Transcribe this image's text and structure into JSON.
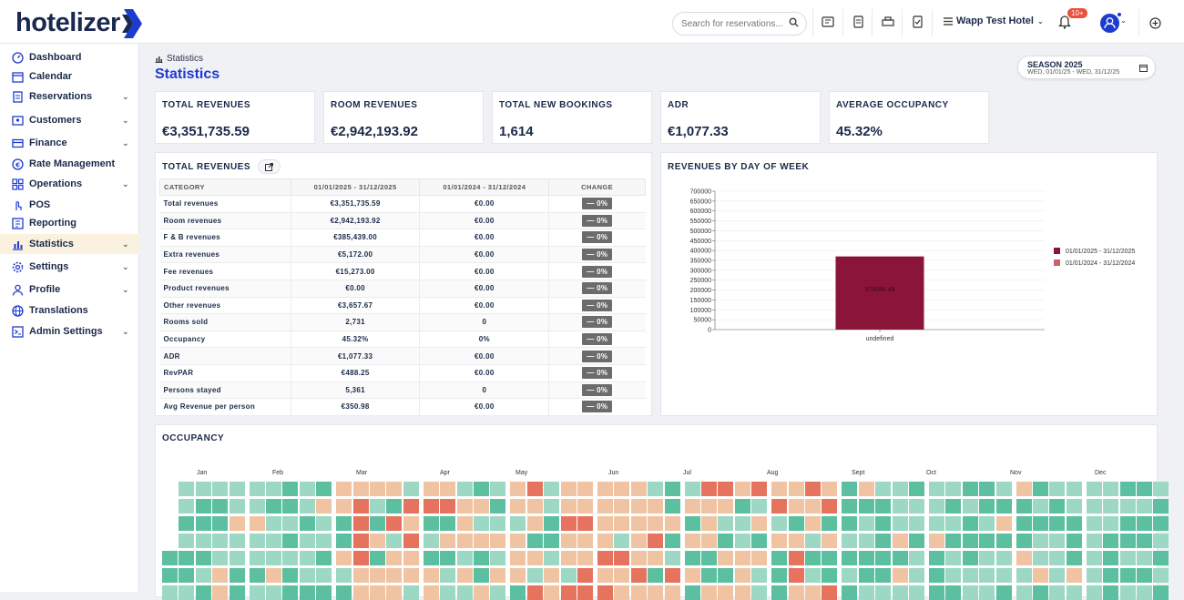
{
  "app": {
    "logo_text": "hotelizer"
  },
  "topbar": {
    "search_placeholder": "Search for reservations...",
    "hotel_name": "Wapp Test Hotel",
    "notification_badge": "10+"
  },
  "sidebar": {
    "items": [
      {
        "label": "Dashboard",
        "icon": "dashboard-icon",
        "chevron": false
      },
      {
        "label": "Calendar",
        "icon": "calendar-icon",
        "chevron": false
      },
      {
        "label": "Reservations",
        "icon": "document-icon",
        "chevron": true
      },
      {
        "label": "Customers",
        "icon": "id-card-icon",
        "chevron": true
      },
      {
        "label": "Finance",
        "icon": "credit-card-icon",
        "chevron": true
      },
      {
        "label": "Rate Management",
        "icon": "euro-icon",
        "chevron": false
      },
      {
        "label": "Operations",
        "icon": "grid-icon",
        "chevron": true
      },
      {
        "label": "POS",
        "icon": "touch-icon",
        "chevron": false
      },
      {
        "label": "Reporting",
        "icon": "report-icon",
        "chevron": false
      },
      {
        "label": "Statistics",
        "icon": "bar-chart-icon",
        "chevron": true,
        "active": true
      },
      {
        "label": "Settings",
        "icon": "gear-icon",
        "chevron": true
      },
      {
        "label": "Profile",
        "icon": "user-icon",
        "chevron": true
      },
      {
        "label": "Translations",
        "icon": "globe-icon",
        "chevron": false
      },
      {
        "label": "Admin Settings",
        "icon": "terminal-icon",
        "chevron": true
      }
    ]
  },
  "breadcrumb": "Statistics",
  "page_title": "Statistics",
  "season": {
    "title": "SEASON 2025",
    "range": "WED, 01/01/25 - WED, 31/12/25"
  },
  "kpis": [
    {
      "label": "TOTAL REVENUES",
      "value": "€3,351,735.59"
    },
    {
      "label": "ROOM REVENUES",
      "value": "€2,942,193.92"
    },
    {
      "label": "TOTAL NEW BOOKINGS",
      "value": "1,614"
    },
    {
      "label": "ADR",
      "value": "€1,077.33"
    },
    {
      "label": "AVERAGE OCCUPANCY",
      "value": "45.32%"
    }
  ],
  "revenues_table": {
    "title": "TOTAL REVENUES",
    "headers": [
      "CATEGORY",
      "01/01/2025 - 31/12/2025",
      "01/01/2024 - 31/12/2024",
      "CHANGE"
    ],
    "rows": [
      [
        "Total revenues",
        "€3,351,735.59",
        "€0.00",
        "— 0%"
      ],
      [
        "Room revenues",
        "€2,942,193.92",
        "€0.00",
        "— 0%"
      ],
      [
        "F & B revenues",
        "€385,439.00",
        "€0.00",
        "— 0%"
      ],
      [
        "Extra revenues",
        "€5,172.00",
        "€0.00",
        "— 0%"
      ],
      [
        "Fee revenues",
        "€15,273.00",
        "€0.00",
        "— 0%"
      ],
      [
        "Product revenues",
        "€0.00",
        "€0.00",
        "— 0%"
      ],
      [
        "Other revenues",
        "€3,657.67",
        "€0.00",
        "— 0%"
      ],
      [
        "Rooms sold",
        "2,731",
        "0",
        "— 0%"
      ],
      [
        "Occupancy",
        "45.32%",
        "0%",
        "— 0%"
      ],
      [
        "ADR",
        "€1,077.33",
        "€0.00",
        "— 0%"
      ],
      [
        "RevPAR",
        "€488.25",
        "€0.00",
        "— 0%"
      ],
      [
        "Persons stayed",
        "5,361",
        "0",
        "— 0%"
      ],
      [
        "Avg Revenue per person",
        "€350.98",
        "€0.00",
        "— 0%"
      ]
    ]
  },
  "chart_data": {
    "type": "bar",
    "title": "REVENUES BY DAY OF WEEK",
    "categories": [
      "undefined"
    ],
    "series": [
      {
        "name": "01/01/2025 - 31/12/2025",
        "values": [
          370046.49
        ],
        "color": "#8b1538"
      },
      {
        "name": "01/01/2024 - 31/12/2024",
        "values": [
          0
        ],
        "color": "#c9616f"
      }
    ],
    "data_labels": [
      "370046.49"
    ],
    "ylim": [
      0,
      700000
    ],
    "yticks": [
      0,
      50000,
      100000,
      150000,
      200000,
      250000,
      300000,
      350000,
      400000,
      450000,
      500000,
      550000,
      600000,
      650000,
      700000
    ],
    "grid": true,
    "legend": "right"
  },
  "occupancy": {
    "title": "OCCUPANCY",
    "months": [
      "Jan",
      "Feb",
      "Mar",
      "Apr",
      "May",
      "Jun",
      "Jul",
      "Aug",
      "Sept",
      "Oct",
      "Nov",
      "Dec"
    ],
    "colors": {
      "low": "#9cd8c4",
      "mid": "#5cbf9f",
      "high": "#f0c4a2",
      "full": "#e5735e"
    }
  },
  "colors": {
    "accent": "#1e3bd0",
    "navy": "#1b2a4a",
    "active_bg": "#fbf1df"
  }
}
